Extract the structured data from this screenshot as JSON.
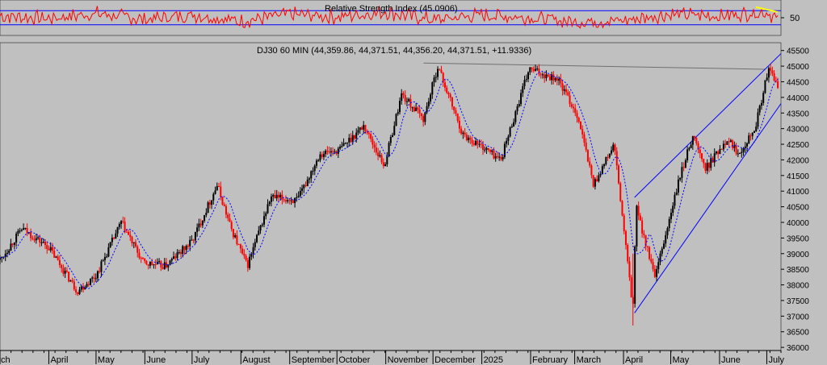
{
  "chart_data": [
    {
      "type": "line",
      "title": "Relative Strength Index (45.0906)",
      "y_ticks": [
        50
      ],
      "ylim": [
        0,
        100
      ],
      "reference_lines": [
        30,
        70
      ],
      "colors": {
        "series": "#ff0000",
        "reference": "#0000ff",
        "divergence": "#ffff00"
      },
      "series": [
        {
          "x": [
            "2024-03-01",
            "2024-04-01",
            "2024-05-01",
            "2024-06-01",
            "2024-07-01",
            "2024-08-01",
            "2024-09-01",
            "2024-10-01",
            "2024-11-01",
            "2024-12-01",
            "2025-01-01",
            "2025-02-01",
            "2025-03-01",
            "2025-04-01",
            "2025-05-01",
            "2025-06-01",
            "2025-07-01",
            "2025-07-08"
          ],
          "values": [
            55,
            48,
            62,
            45,
            58,
            40,
            60,
            52,
            66,
            44,
            58,
            50,
            38,
            42,
            60,
            55,
            66,
            45
          ]
        }
      ]
    },
    {
      "type": "candlestick",
      "title": "DJ30 60 MIN (44,359.86, 44,371.51, 44,356.20, 44,371.51, +11.9336)",
      "x_tick_labels": [
        "March",
        "April",
        "May",
        "June",
        "July",
        "August",
        "September",
        "October",
        "November",
        "December",
        "2025",
        "February",
        "March",
        "April",
        "May",
        "June",
        "July"
      ],
      "y_ticks": [
        36000,
        36500,
        37000,
        37500,
        38000,
        38500,
        39000,
        39500,
        40000,
        40500,
        41000,
        41500,
        42000,
        42500,
        43000,
        43500,
        44000,
        44500,
        45000,
        45500
      ],
      "ylim": [
        35900,
        45750
      ],
      "grid": false,
      "colors": {
        "up": "#000000",
        "down": "#ff0000",
        "moving_average": "#0000ff",
        "trendline": "#0000ff",
        "resistance": "#707070"
      },
      "price": {
        "x": [
          "2024-03-01",
          "2024-03-15",
          "2024-04-01",
          "2024-04-19",
          "2024-05-01",
          "2024-05-17",
          "2024-05-31",
          "2024-06-14",
          "2024-07-01",
          "2024-07-17",
          "2024-07-25",
          "2024-08-05",
          "2024-08-20",
          "2024-09-06",
          "2024-09-20",
          "2024-10-02",
          "2024-10-18",
          "2024-10-31",
          "2024-11-11",
          "2024-11-25",
          "2024-12-04",
          "2024-12-20",
          "2025-01-02",
          "2025-01-13",
          "2025-01-31",
          "2025-02-18",
          "2025-03-03",
          "2025-03-13",
          "2025-03-26",
          "2025-04-07",
          "2025-04-09",
          "2025-04-21",
          "2025-05-06",
          "2025-05-15",
          "2025-05-23",
          "2025-06-06",
          "2025-06-13",
          "2025-06-24",
          "2025-07-02",
          "2025-07-08"
        ],
        "close": [
          38800,
          39800,
          39200,
          37800,
          38300,
          40000,
          38700,
          38600,
          39400,
          41200,
          39900,
          38600,
          40800,
          40700,
          42200,
          42300,
          43100,
          41800,
          44100,
          43300,
          45000,
          42800,
          42400,
          42000,
          44900,
          44600,
          43400,
          41200,
          42500,
          37200,
          40500,
          38200,
          41300,
          42800,
          41700,
          42700,
          42200,
          43100,
          44900,
          44370
        ]
      }
    }
  ]
}
